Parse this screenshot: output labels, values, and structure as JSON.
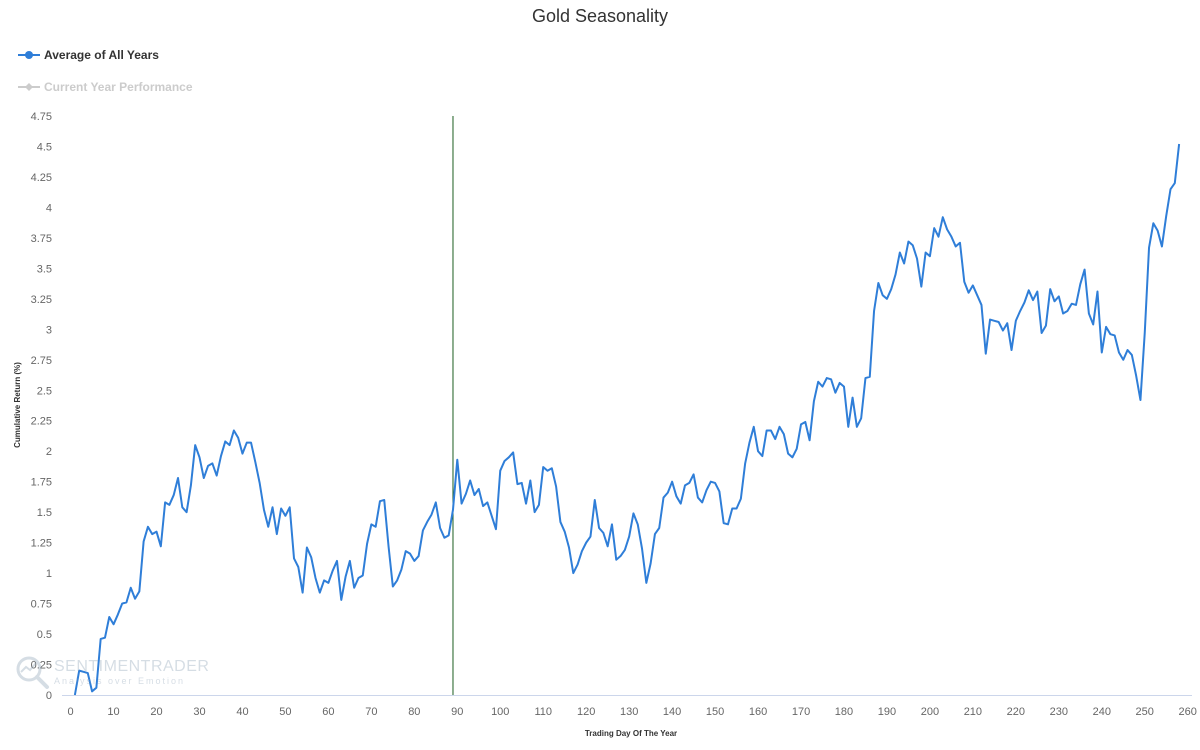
{
  "watermark": {
    "brand": "SENTIMENTRADER",
    "tagline": "Analysis over Emotion"
  },
  "chart_data": {
    "type": "line",
    "title": "Gold Seasonality",
    "xlabel": "Trading Day Of The Year",
    "ylabel": "Cumulative Return (%)",
    "xlim": [
      -2,
      261
    ],
    "ylim": [
      0,
      4.75
    ],
    "xticks": [
      0,
      10,
      20,
      30,
      40,
      50,
      60,
      70,
      80,
      90,
      100,
      110,
      120,
      130,
      140,
      150,
      160,
      170,
      180,
      190,
      200,
      210,
      220,
      230,
      240,
      250,
      260
    ],
    "yticks": [
      0,
      0.25,
      0.5,
      0.75,
      1,
      1.25,
      1.5,
      1.75,
      2,
      2.25,
      2.5,
      2.75,
      3,
      3.25,
      3.5,
      3.75,
      4,
      4.25,
      4.5,
      4.75
    ],
    "ytick_labels": [
      "0",
      "0.25",
      "0.5",
      "0.75",
      "1",
      "1.25",
      "1.5",
      "1.75",
      "2",
      "2.25",
      "2.5",
      "2.75",
      "3",
      "3.25",
      "3.5",
      "3.75",
      "4",
      "4.25",
      "4.5",
      "4.75"
    ],
    "grid": false,
    "legend_position": "top-left",
    "vertical_marker": {
      "x": 89,
      "color": "#1b5e20"
    },
    "series": [
      {
        "name": "Average of All Years",
        "color": "#2f7ed8",
        "visible": true,
        "x_start": 1,
        "values": [
          0.0,
          0.2,
          0.19,
          0.18,
          0.03,
          0.06,
          0.46,
          0.47,
          0.64,
          0.58,
          0.66,
          0.75,
          0.76,
          0.88,
          0.79,
          0.85,
          1.26,
          1.38,
          1.32,
          1.34,
          1.22,
          1.58,
          1.56,
          1.64,
          1.78,
          1.54,
          1.5,
          1.72,
          2.05,
          1.95,
          1.78,
          1.88,
          1.9,
          1.8,
          1.96,
          2.08,
          2.05,
          2.17,
          2.11,
          1.98,
          2.07,
          2.07,
          1.91,
          1.74,
          1.52,
          1.38,
          1.54,
          1.32,
          1.53,
          1.47,
          1.54,
          1.12,
          1.05,
          0.84,
          1.21,
          1.13,
          0.96,
          0.84,
          0.94,
          0.92,
          1.02,
          1.1,
          0.78,
          0.97,
          1.1,
          0.88,
          0.96,
          0.98,
          1.24,
          1.4,
          1.38,
          1.59,
          1.6,
          1.22,
          0.89,
          0.94,
          1.03,
          1.18,
          1.16,
          1.1,
          1.14,
          1.35,
          1.42,
          1.48,
          1.58,
          1.37,
          1.29,
          1.31,
          1.52,
          1.93,
          1.57,
          1.65,
          1.76,
          1.64,
          1.69,
          1.55,
          1.58,
          1.47,
          1.36,
          1.84,
          1.92,
          1.95,
          1.99,
          1.73,
          1.74,
          1.57,
          1.76,
          1.5,
          1.56,
          1.87,
          1.84,
          1.86,
          1.71,
          1.42,
          1.34,
          1.21,
          1.0,
          1.07,
          1.18,
          1.25,
          1.3,
          1.6,
          1.37,
          1.33,
          1.22,
          1.4,
          1.11,
          1.14,
          1.19,
          1.3,
          1.49,
          1.4,
          1.2,
          0.92,
          1.08,
          1.32,
          1.37,
          1.62,
          1.66,
          1.75,
          1.63,
          1.57,
          1.72,
          1.74,
          1.81,
          1.62,
          1.58,
          1.68,
          1.75,
          1.74,
          1.67,
          1.41,
          1.4,
          1.53,
          1.53,
          1.61,
          1.9,
          2.07,
          2.2,
          2.0,
          1.96,
          2.17,
          2.17,
          2.1,
          2.2,
          2.14,
          1.98,
          1.95,
          2.02,
          2.22,
          2.24,
          2.09,
          2.41,
          2.57,
          2.53,
          2.6,
          2.59,
          2.48,
          2.56,
          2.53,
          2.2,
          2.44,
          2.2,
          2.27,
          2.6,
          2.61,
          3.15,
          3.38,
          3.28,
          3.25,
          3.33,
          3.45,
          3.63,
          3.54,
          3.72,
          3.69,
          3.58,
          3.35,
          3.63,
          3.6,
          3.83,
          3.76,
          3.92,
          3.82,
          3.76,
          3.68,
          3.71,
          3.39,
          3.3,
          3.36,
          3.28,
          3.2,
          2.8,
          3.08,
          3.07,
          3.06,
          2.99,
          3.05,
          2.83,
          3.07,
          3.15,
          3.22,
          3.32,
          3.24,
          3.31,
          2.97,
          3.03,
          3.33,
          3.23,
          3.27,
          3.13,
          3.15,
          3.21,
          3.2,
          3.37,
          3.49,
          3.13,
          3.04,
          3.31,
          2.81,
          3.02,
          2.96,
          2.95,
          2.81,
          2.75,
          2.83,
          2.79,
          2.62,
          2.42,
          2.97,
          3.67,
          3.87,
          3.81,
          3.68,
          3.93,
          4.15,
          4.2,
          4.52
        ]
      },
      {
        "name": "Current Year Performance",
        "color": "#cccccc",
        "visible": false,
        "x_start": 1,
        "values": []
      }
    ]
  }
}
